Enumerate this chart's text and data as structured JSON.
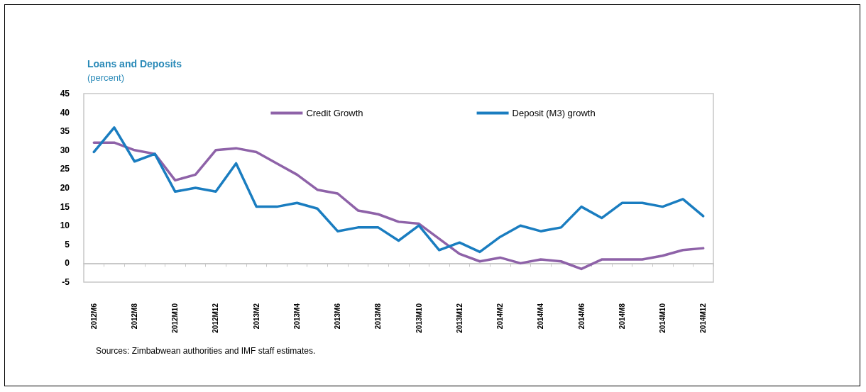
{
  "chart_data": {
    "type": "line",
    "title": "Loans and Deposits",
    "subtitle": "(percent)",
    "categories": [
      "2012M6",
      null,
      "2012M8",
      null,
      "2012M10",
      null,
      "2012M12",
      null,
      "2013M2",
      null,
      "2013M4",
      null,
      "2013M6",
      null,
      "2013M8",
      null,
      "2013M10",
      null,
      "2013M12",
      null,
      "2014M2",
      null,
      "2014M4",
      null,
      "2014M6",
      null,
      "2014M8",
      null,
      "2014M10",
      null,
      "2014M12"
    ],
    "series": [
      {
        "name": "Credit Growth",
        "color": "#8e62a8",
        "values": [
          32,
          32,
          30,
          29,
          22,
          23.5,
          30,
          30.5,
          29.5,
          26.5,
          23.5,
          19.5,
          18.5,
          14,
          13,
          11,
          10.5,
          6.5,
          2.5,
          0.5,
          1.5,
          0,
          1,
          0.5,
          -1.5,
          1,
          1,
          1,
          2,
          3.5,
          4
        ]
      },
      {
        "name": "Deposit (M3) growth",
        "color": "#1a7dc0",
        "values": [
          29.5,
          36,
          27,
          29,
          19,
          20,
          19,
          26.5,
          15,
          15,
          16,
          14.5,
          8.5,
          9.5,
          9.5,
          6,
          10,
          3.5,
          5.5,
          3,
          7,
          10,
          8.5,
          9.5,
          15,
          12,
          16,
          16,
          15,
          17,
          12.5
        ]
      }
    ],
    "ylim": [
      -5,
      45
    ],
    "yticks": [
      -5,
      0,
      5,
      10,
      15,
      20,
      25,
      30,
      35,
      40,
      45
    ],
    "legend": "top",
    "marker": "none",
    "line_style": "solid",
    "annotations": [
      "Sources: Zimbabwean authorities and IMF staff estimates."
    ]
  }
}
